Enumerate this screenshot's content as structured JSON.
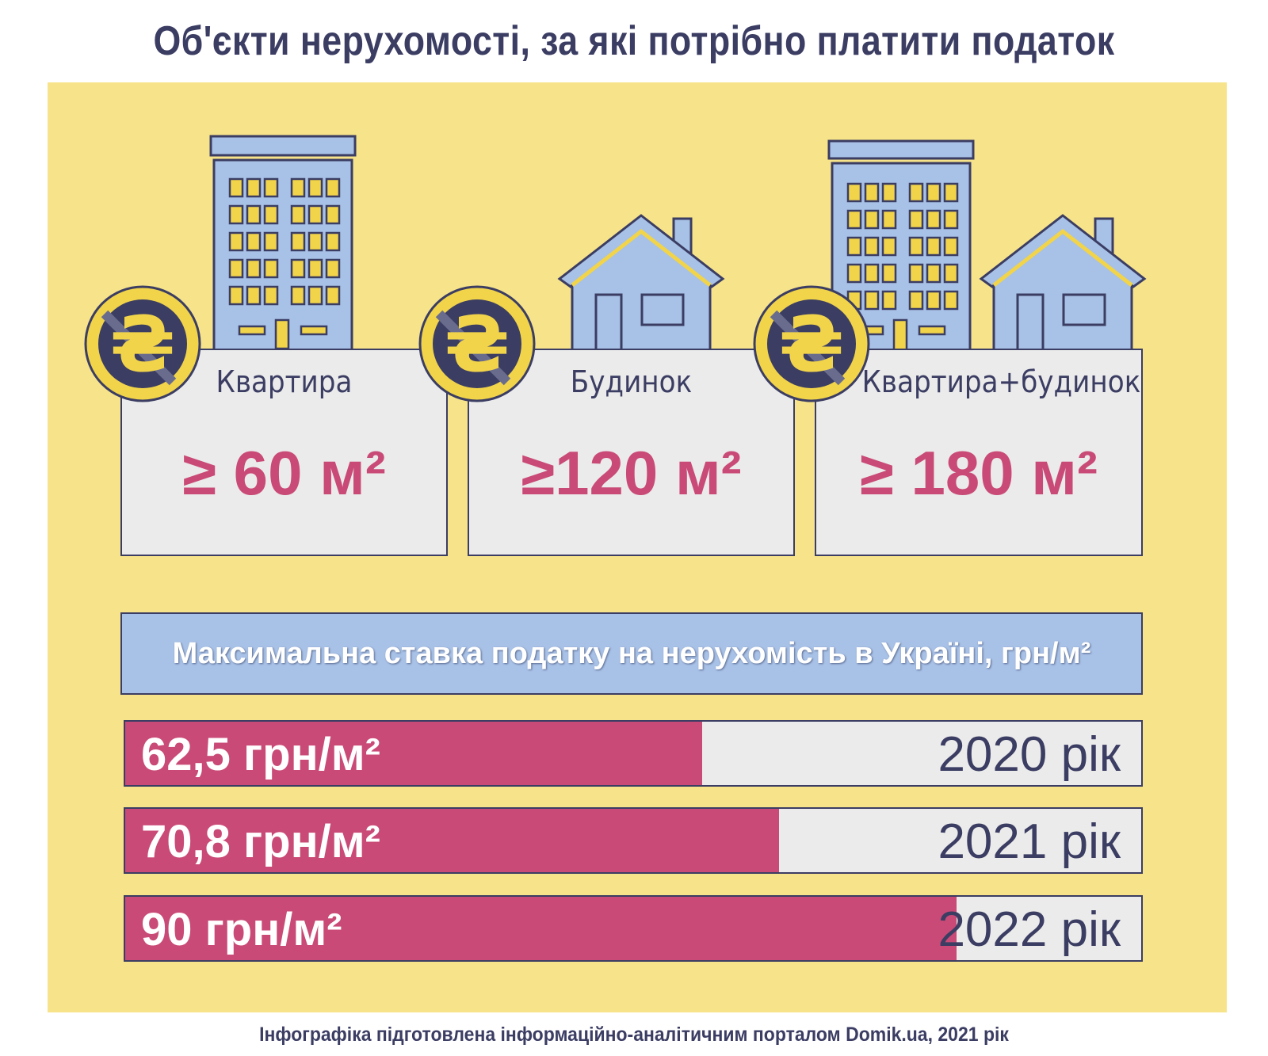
{
  "title": "Об'єкти нерухомості, за які потрібно платити податок",
  "colors": {
    "background": "#f7e48a",
    "accent": "#c94a76",
    "building": "#a8c1e6",
    "outline": "#3b3d63",
    "coin": "#f1d44a"
  },
  "cards": [
    {
      "label": "Квартира",
      "value": "≥ 60 м²",
      "icon": "apartment-building-icon"
    },
    {
      "label": "Будинок",
      "value": "≥120 м²",
      "icon": "house-icon"
    },
    {
      "label": "Квартира+будинок",
      "value": "≥ 180 м²",
      "icon": "building-and-house-icon"
    }
  ],
  "rates": {
    "heading": "Максимальна ставка податку на нерухомість в Україні, грн/м²",
    "items": [
      {
        "value_label": "62,5 грн/м²",
        "year_label": "2020 рік",
        "value": 62.5
      },
      {
        "value_label": "70,8 грн/м²",
        "year_label": "2021 рік",
        "value": 70.8
      },
      {
        "value_label": "90 грн/м²",
        "year_label": "2022 рік",
        "value": 90
      }
    ]
  },
  "footer": "Інфографіка підготовлена інформаційно-аналітичним порталом Domik.ua, 2021 рік"
}
